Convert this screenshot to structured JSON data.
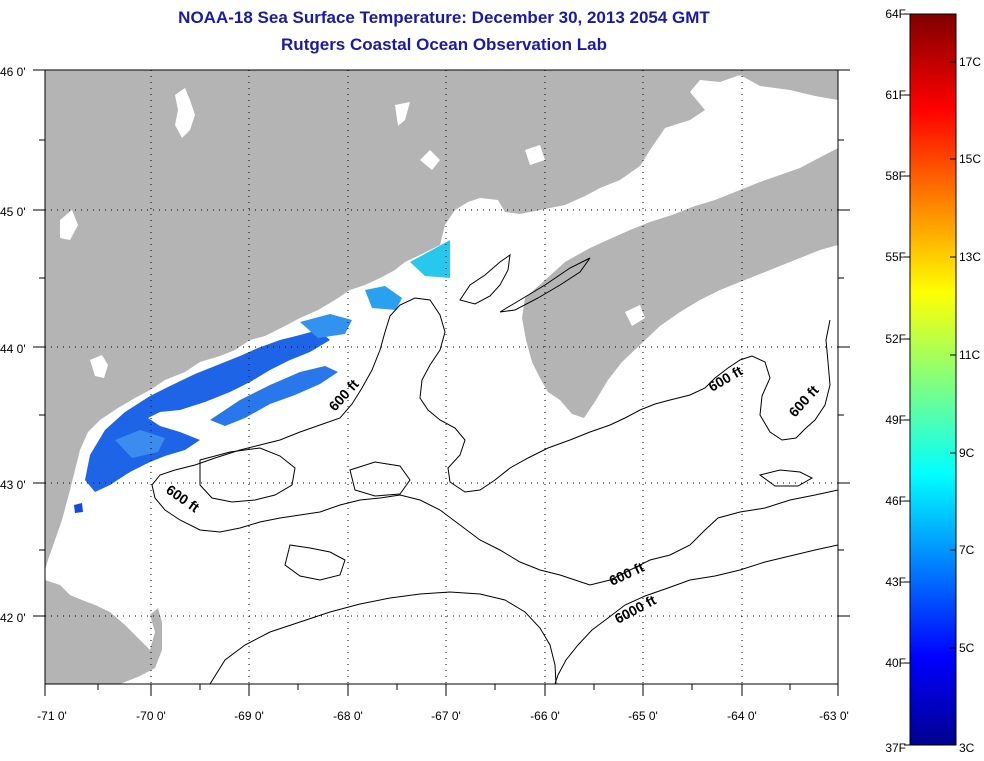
{
  "header": {
    "title": "NOAA-18 Sea Surface Temperature:  December 30, 2013 2054 GMT",
    "subtitle": "Rutgers Coastal Ocean Observation Lab"
  },
  "map": {
    "lon_range": [
      -71,
      -63
    ],
    "lat_range": [
      41.5,
      46
    ],
    "lon_ticks": [
      "-71 0'",
      "-70 0'",
      "-69 0'",
      "-68 0'",
      "-67 0'",
      "-66 0'",
      "-65 0'",
      "-64 0'",
      "-63 0'"
    ],
    "lat_ticks": [
      "46 0'",
      "45 0'",
      "44 0'",
      "43 0'",
      "42 0'"
    ],
    "grid": "dotted",
    "land_color": "#b4b4b4",
    "water_color": "#ffffff",
    "contour_labels": [
      "600 ft",
      "600 ft",
      "600 ft",
      "600 ft",
      "600 ft",
      "6000 ft"
    ]
  },
  "colorbar": {
    "fahrenheit": [
      "64F",
      "61F",
      "58F",
      "55F",
      "52F",
      "49F",
      "46F",
      "43F",
      "40F",
      "37F"
    ],
    "celsius": [
      "17C",
      "15C",
      "13C",
      "11C",
      "9C",
      "7C",
      "5C",
      "3C"
    ]
  }
}
